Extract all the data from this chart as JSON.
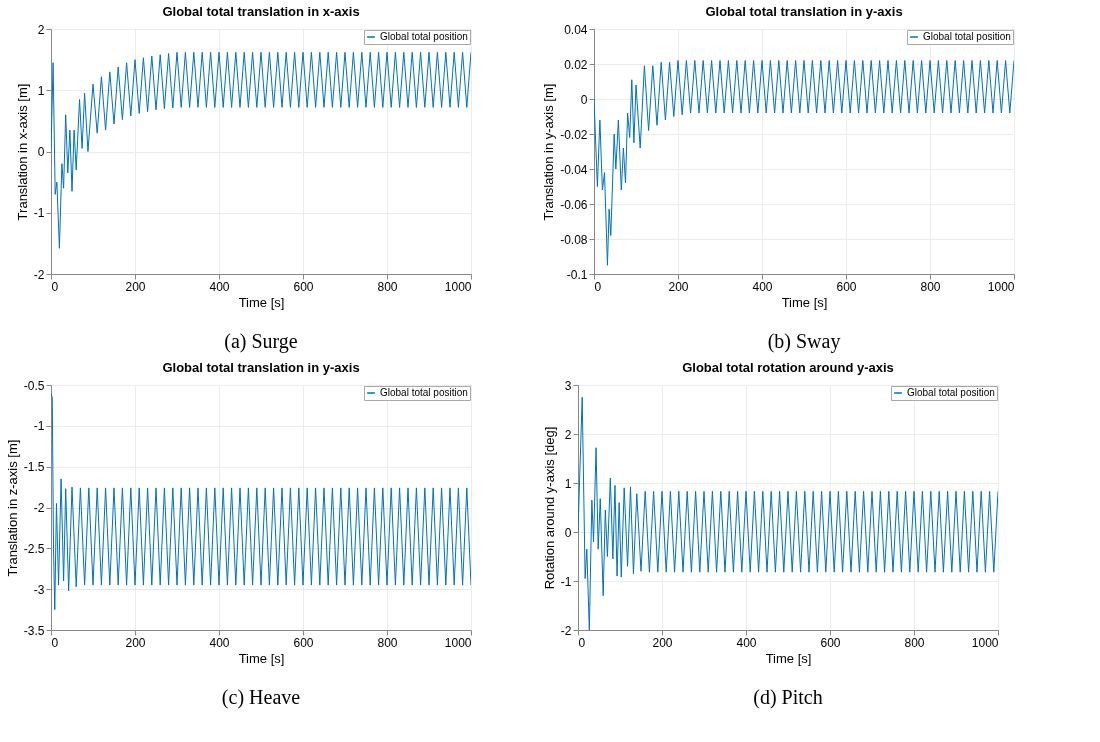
{
  "chart_data": [
    {
      "type": "line",
      "title": "Global total translation in x-axis",
      "xlabel": "Time [s]",
      "ylabel": "Translation in x-axis [m]",
      "xlim": [
        0,
        1000
      ],
      "xticks": [
        0,
        200,
        400,
        600,
        800,
        1000
      ],
      "ylim": [
        -2,
        2
      ],
      "yticks": [
        -2,
        -1,
        0,
        1,
        2
      ],
      "grid": true,
      "legend": "top right",
      "annotations": [
        "(a) Surge"
      ],
      "series": [
        {
          "name": "Global total position",
          "color": "#0072bd",
          "x": [
            0,
            5,
            10,
            14,
            20,
            26,
            30,
            35,
            40,
            45,
            50,
            55,
            60,
            68,
            74,
            80,
            88,
            100,
            110,
            120,
            130,
            140,
            150,
            160,
            170,
            180,
            190,
            200,
            210,
            220,
            230,
            240,
            250,
            260,
            270,
            280,
            290,
            300,
            310,
            320,
            330,
            340,
            350,
            360,
            370,
            380,
            390,
            400,
            410,
            420,
            430,
            440,
            450,
            460,
            470,
            480,
            490,
            500,
            510,
            520,
            530,
            540,
            550,
            560,
            570,
            580,
            590,
            600,
            610,
            620,
            630,
            640,
            650,
            660,
            670,
            680,
            690,
            700,
            710,
            720,
            730,
            740,
            750,
            760,
            770,
            780,
            790,
            800,
            810,
            820,
            830,
            840,
            850,
            860,
            870,
            880,
            890,
            900,
            910,
            920,
            930,
            940,
            950,
            960,
            970,
            980,
            990,
            1000
          ],
          "values": [
            0,
            1.45,
            -0.7,
            -0.5,
            -1.58,
            -0.2,
            -0.6,
            0.6,
            -0.35,
            0.35,
            -0.65,
            0.35,
            -0.3,
            0.85,
            0.05,
            0.95,
            0,
            1.1,
            0.3,
            1.22,
            0.35,
            1.3,
            0.45,
            1.38,
            0.52,
            1.45,
            0.58,
            1.5,
            0.62,
            1.53,
            0.65,
            1.56,
            0.68,
            1.58,
            0.7,
            1.6,
            0.71,
            1.62,
            0.72,
            1.62,
            0.72,
            1.62,
            0.72,
            1.62,
            0.72,
            1.62,
            0.72,
            1.62,
            0.72,
            1.62,
            0.72,
            1.62,
            0.72,
            1.62,
            0.72,
            1.62,
            0.72,
            1.62,
            0.72,
            1.62,
            0.72,
            1.62,
            0.72,
            1.62,
            0.72,
            1.62,
            0.72,
            1.62,
            0.72,
            1.62,
            0.72,
            1.62,
            0.72,
            1.62,
            0.72,
            1.62,
            0.72,
            1.62,
            0.72,
            1.62,
            0.72,
            1.62,
            0.72,
            1.62,
            0.72,
            1.62,
            0.72,
            1.62,
            0.72,
            1.62,
            0.72,
            1.62,
            0.72,
            1.62,
            0.72,
            1.62,
            0.72,
            1.62,
            0.72,
            1.62,
            0.72,
            1.62,
            0.72,
            1.62,
            0.72,
            1.62,
            0.72,
            1.62
          ]
        }
      ]
    },
    {
      "type": "line",
      "title": "Global total translation in y-axis",
      "xlabel": "Time [s]",
      "ylabel": "Translation in y-axis [m]",
      "xlim": [
        0,
        1000
      ],
      "xticks": [
        0,
        200,
        400,
        600,
        800,
        1000
      ],
      "ylim": [
        -0.1,
        0.04
      ],
      "yticks": [
        -0.1,
        -0.08,
        -0.06,
        -0.04,
        -0.02,
        0,
        0.02,
        0.04
      ],
      "grid": true,
      "legend": "top right",
      "annotations": [
        "(b) Sway"
      ],
      "series": [
        {
          "name": "Global total position",
          "color": "#0072bd",
          "x": [
            0,
            8,
            14,
            20,
            25,
            32,
            36,
            40,
            48,
            52,
            58,
            65,
            70,
            75,
            80,
            85,
            90,
            95,
            100,
            110,
            120,
            130,
            140,
            150,
            160,
            170,
            180,
            190,
            200,
            210,
            220,
            230,
            240,
            250,
            260,
            270,
            280,
            290,
            300,
            310,
            320,
            330,
            340,
            350,
            360,
            370,
            380,
            390,
            400,
            410,
            420,
            430,
            440,
            450,
            460,
            470,
            480,
            490,
            500,
            510,
            520,
            530,
            540,
            550,
            560,
            570,
            580,
            590,
            600,
            610,
            620,
            630,
            640,
            650,
            660,
            670,
            680,
            690,
            700,
            710,
            720,
            730,
            740,
            750,
            760,
            770,
            780,
            790,
            800,
            810,
            820,
            830,
            840,
            850,
            860,
            870,
            880,
            890,
            900,
            910,
            920,
            930,
            940,
            950,
            960,
            970,
            980,
            990,
            1000
          ],
          "values": [
            0,
            -0.05,
            -0.012,
            -0.052,
            -0.042,
            -0.095,
            -0.063,
            -0.078,
            -0.02,
            -0.04,
            -0.012,
            -0.052,
            -0.028,
            -0.048,
            -0.008,
            -0.022,
            0.011,
            -0.025,
            0.008,
            -0.028,
            0.019,
            -0.018,
            0.019,
            -0.015,
            0.021,
            -0.012,
            0.021,
            -0.01,
            0.022,
            -0.009,
            0.022,
            -0.008,
            0.022,
            -0.008,
            0.022,
            -0.008,
            0.022,
            -0.008,
            0.022,
            -0.008,
            0.022,
            -0.008,
            0.022,
            -0.008,
            0.022,
            -0.008,
            0.022,
            -0.008,
            0.022,
            -0.008,
            0.022,
            -0.008,
            0.022,
            -0.008,
            0.022,
            -0.008,
            0.022,
            -0.008,
            0.022,
            -0.008,
            0.022,
            -0.008,
            0.022,
            -0.008,
            0.022,
            -0.008,
            0.022,
            -0.008,
            0.022,
            -0.008,
            0.022,
            -0.008,
            0.022,
            -0.008,
            0.022,
            -0.008,
            0.022,
            -0.008,
            0.022,
            -0.008,
            0.022,
            -0.008,
            0.022,
            -0.008,
            0.022,
            -0.008,
            0.022,
            -0.008,
            0.022,
            -0.008,
            0.022,
            -0.008,
            0.022,
            -0.008,
            0.022,
            -0.008,
            0.022,
            -0.008,
            0.022,
            -0.008,
            0.022,
            -0.008,
            0.022,
            -0.008,
            0.022,
            -0.008,
            0.022,
            -0.008,
            0.022
          ]
        }
      ]
    },
    {
      "type": "line",
      "title": "Global total translation in y-axis",
      "xlabel": "Time [s]",
      "ylabel": "Translation in z-axis [m]",
      "xlim": [
        0,
        1000
      ],
      "xticks": [
        0,
        200,
        400,
        600,
        800,
        1000
      ],
      "ylim": [
        -3.5,
        -0.5
      ],
      "yticks": [
        -3.5,
        -3,
        -2.5,
        -2,
        -1.5,
        -1,
        -0.5
      ],
      "grid": true,
      "legend": "top right",
      "annotations": [
        "(c) Heave"
      ],
      "series": [
        {
          "name": "Global total position",
          "color": "#0072bd",
          "x": [
            0,
            3,
            6,
            9,
            13,
            18,
            24,
            30,
            35,
            42,
            50,
            60,
            70,
            80,
            90,
            100,
            110,
            120,
            130,
            140,
            150,
            160,
            170,
            180,
            190,
            200,
            210,
            220,
            230,
            240,
            250,
            260,
            270,
            280,
            290,
            300,
            310,
            320,
            330,
            340,
            350,
            360,
            370,
            380,
            390,
            400,
            410,
            420,
            430,
            440,
            450,
            460,
            470,
            480,
            490,
            500,
            510,
            520,
            530,
            540,
            550,
            560,
            570,
            580,
            590,
            600,
            610,
            620,
            630,
            640,
            650,
            660,
            670,
            680,
            690,
            700,
            710,
            720,
            730,
            740,
            750,
            760,
            770,
            780,
            790,
            800,
            810,
            820,
            830,
            840,
            850,
            860,
            870,
            880,
            890,
            900,
            910,
            920,
            930,
            940,
            950,
            960,
            970,
            980,
            990,
            1000
          ],
          "values": [
            -0.6,
            -0.65,
            -2.5,
            -3.25,
            -1.95,
            -2.95,
            -1.65,
            -2.9,
            -1.77,
            -3.02,
            -1.75,
            -2.97,
            -1.76,
            -2.95,
            -1.76,
            -2.95,
            -1.76,
            -2.95,
            -1.76,
            -2.95,
            -1.76,
            -2.95,
            -1.76,
            -2.95,
            -1.76,
            -2.95,
            -1.76,
            -2.95,
            -1.76,
            -2.95,
            -1.76,
            -2.95,
            -1.76,
            -2.95,
            -1.76,
            -2.95,
            -1.76,
            -2.95,
            -1.76,
            -2.95,
            -1.76,
            -2.95,
            -1.76,
            -2.95,
            -1.76,
            -2.95,
            -1.76,
            -2.95,
            -1.76,
            -2.95,
            -1.76,
            -2.95,
            -1.76,
            -2.95,
            -1.76,
            -2.95,
            -1.76,
            -2.95,
            -1.76,
            -2.95,
            -1.76,
            -2.95,
            -1.76,
            -2.95,
            -1.76,
            -2.95,
            -1.76,
            -2.95,
            -1.76,
            -2.95,
            -1.76,
            -2.95,
            -1.76,
            -2.95,
            -1.76,
            -2.95,
            -1.76,
            -2.95,
            -1.76,
            -2.95,
            -1.76,
            -2.95,
            -1.76,
            -2.95,
            -1.76,
            -2.95,
            -1.76,
            -2.95,
            -1.76,
            -2.95,
            -1.76,
            -2.95,
            -1.76,
            -2.95,
            -1.76,
            -2.95,
            -1.76,
            -2.95,
            -1.76,
            -2.95,
            -1.76,
            -2.95,
            -1.76,
            -2.95,
            -1.76,
            -2.95
          ]
        }
      ]
    },
    {
      "type": "line",
      "title": "Global total rotation around y-axis",
      "xlabel": "Time [s]",
      "ylabel": "Rotation around y-axis [deg]",
      "xlim": [
        0,
        1000
      ],
      "xticks": [
        0,
        200,
        400,
        600,
        800,
        1000
      ],
      "ylim": [
        -2,
        3
      ],
      "yticks": [
        -2,
        -1,
        0,
        1,
        2,
        3
      ],
      "grid": true,
      "legend": "top right",
      "annotations": [
        "(d) Pitch"
      ],
      "series": [
        {
          "name": "Global total position",
          "color": "#0072bd",
          "x": [
            0,
            10,
            17,
            21,
            27,
            33,
            37,
            43,
            48,
            53,
            60,
            65,
            70,
            77,
            83,
            88,
            93,
            98,
            103,
            110,
            118,
            125,
            132,
            140,
            150,
            160,
            170,
            180,
            190,
            200,
            210,
            220,
            230,
            240,
            250,
            260,
            270,
            280,
            290,
            300,
            310,
            320,
            330,
            340,
            350,
            360,
            370,
            380,
            390,
            400,
            410,
            420,
            430,
            440,
            450,
            460,
            470,
            480,
            490,
            500,
            510,
            520,
            530,
            540,
            550,
            560,
            570,
            580,
            590,
            600,
            610,
            620,
            630,
            640,
            650,
            660,
            670,
            680,
            690,
            700,
            710,
            720,
            730,
            740,
            750,
            760,
            770,
            780,
            790,
            800,
            810,
            820,
            830,
            840,
            850,
            860,
            870,
            880,
            890,
            900,
            910,
            920,
            930,
            940,
            950,
            960,
            970,
            980,
            990,
            1000
          ],
          "values": [
            0,
            2.75,
            -0.95,
            -0.35,
            -2.0,
            0.65,
            -0.2,
            1.72,
            -0.35,
            0.68,
            -1.3,
            0.45,
            -0.5,
            1.1,
            -0.55,
            0.95,
            -0.9,
            0.6,
            -0.92,
            0.9,
            -0.7,
            0.92,
            -0.85,
            0.78,
            -0.8,
            0.83,
            -0.82,
            0.83,
            -0.82,
            0.83,
            -0.82,
            0.83,
            -0.82,
            0.83,
            -0.82,
            0.83,
            -0.82,
            0.83,
            -0.82,
            0.83,
            -0.82,
            0.83,
            -0.82,
            0.83,
            -0.82,
            0.83,
            -0.82,
            0.83,
            -0.82,
            0.83,
            -0.82,
            0.83,
            -0.82,
            0.83,
            -0.82,
            0.83,
            -0.82,
            0.83,
            -0.82,
            0.83,
            -0.82,
            0.83,
            -0.82,
            0.83,
            -0.82,
            0.83,
            -0.82,
            0.83,
            -0.82,
            0.83,
            -0.82,
            0.83,
            -0.82,
            0.83,
            -0.82,
            0.83,
            -0.82,
            0.83,
            -0.82,
            0.83,
            -0.82,
            0.83,
            -0.82,
            0.83,
            -0.82,
            0.83,
            -0.82,
            0.83,
            -0.82,
            0.83,
            -0.82,
            0.83,
            -0.82,
            0.83,
            -0.82,
            0.83,
            -0.82,
            0.83,
            -0.82,
            0.83,
            -0.82,
            0.83,
            -0.82,
            0.83,
            -0.82,
            0.83,
            -0.82,
            0.83,
            -0.82,
            0.83
          ]
        }
      ]
    }
  ]
}
